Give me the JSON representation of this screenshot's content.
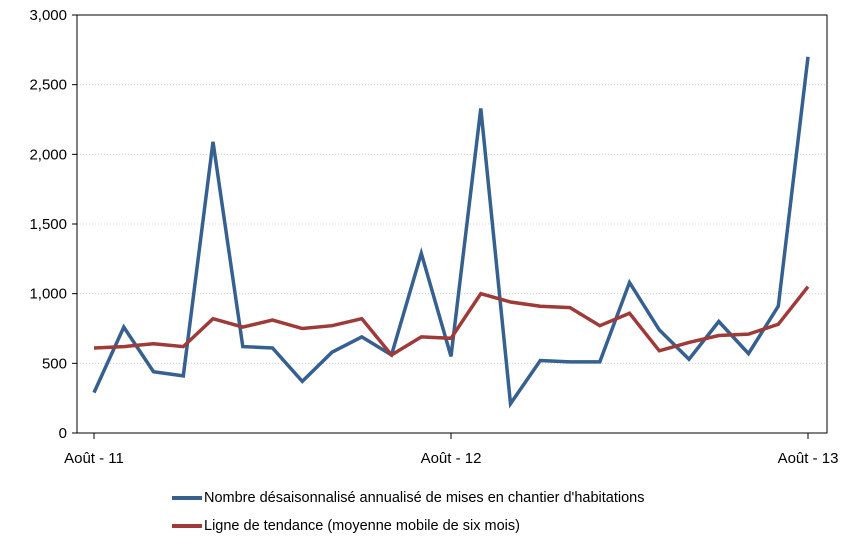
{
  "chart_data": {
    "type": "line",
    "title": "",
    "xlabel": "",
    "ylabel": "",
    "x_tick_labels": [
      {
        "label": "Août - 11",
        "index": 0
      },
      {
        "label": "Août - 12",
        "index": 12
      },
      {
        "label": "Août - 13",
        "index": 24
      }
    ],
    "ylim": [
      0,
      3000
    ],
    "y_ticks": [
      0,
      500,
      1000,
      1500,
      2000,
      2500,
      3000
    ],
    "y_tick_labels": [
      "0",
      "500",
      "1,000",
      "1,500",
      "2,000",
      "2,500",
      "3,000"
    ],
    "grid": "horizontal",
    "legend_position": "bottom",
    "series": [
      {
        "name": "Nombre désaisonnalisé annualisé de mises en chantier d'habitations",
        "color": "#36608f",
        "values": [
          290,
          760,
          440,
          410,
          2090,
          620,
          610,
          370,
          580,
          690,
          560,
          1290,
          550,
          2330,
          210,
          520,
          510,
          510,
          1080,
          740,
          530,
          800,
          570,
          910,
          2700
        ]
      },
      {
        "name": "Ligne de tendance (moyenne mobile de six mois)",
        "color": "#9e3a38",
        "values": [
          610,
          620,
          640,
          620,
          820,
          760,
          810,
          750,
          770,
          820,
          560,
          690,
          680,
          1000,
          940,
          910,
          900,
          770,
          860,
          590,
          650,
          700,
          710,
          780,
          1050
        ]
      }
    ]
  }
}
